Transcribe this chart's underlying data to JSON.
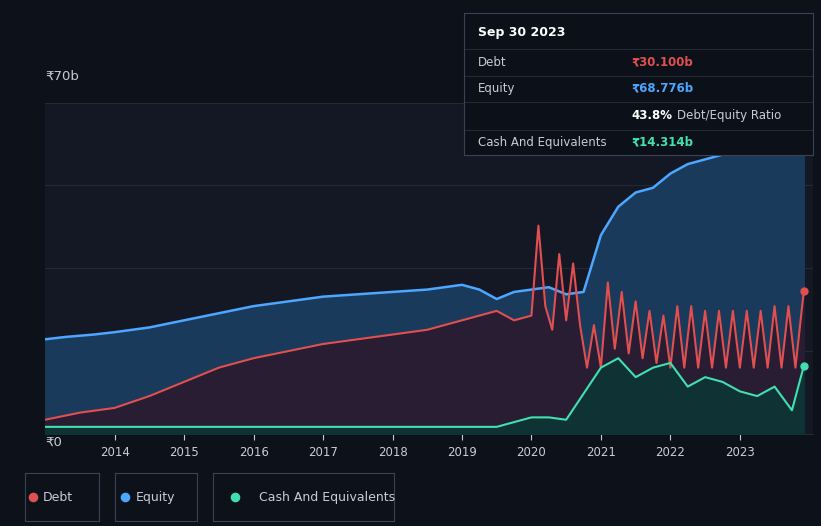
{
  "bg_color": "#0d111a",
  "chart_area_color": "#141824",
  "equity_fill_color": "#1a3a5c",
  "debt_fill_color": "#2a1a2e",
  "cash_fill_color": "#0d3535",
  "equity_line_color": "#4da6ff",
  "debt_line_color": "#e05050",
  "cash_line_color": "#40e0b0",
  "grid_color": "#252d3d",
  "text_color": "#c8ccd4",
  "ylim": [
    0,
    70
  ],
  "ylabel_text": "₹70b",
  "y0_text": "₹0",
  "xtick_labels": [
    "2014",
    "2015",
    "2016",
    "2017",
    "2018",
    "2019",
    "2020",
    "2021",
    "2022",
    "2023"
  ],
  "xtick_values": [
    2014,
    2015,
    2016,
    2017,
    2018,
    2019,
    2020,
    2021,
    2022,
    2023
  ],
  "tooltip_date": "Sep 30 2023",
  "tooltip_debt_label": "Debt",
  "tooltip_debt_value": "₹30.100b",
  "tooltip_equity_label": "Equity",
  "tooltip_equity_value": "₹68.776b",
  "tooltip_ratio_bold": "43.8%",
  "tooltip_ratio_text": " Debt/Equity Ratio",
  "tooltip_cash_label": "Cash And Equivalents",
  "tooltip_cash_value": "₹14.314b",
  "legend_debt": "Debt",
  "legend_equity": "Equity",
  "legend_cash": "Cash And Equivalents",
  "equity_x": [
    2013.0,
    2013.3,
    2013.7,
    2014.0,
    2014.5,
    2015.0,
    2015.5,
    2016.0,
    2016.5,
    2017.0,
    2017.5,
    2018.0,
    2018.5,
    2018.75,
    2019.0,
    2019.25,
    2019.5,
    2019.75,
    2020.0,
    2020.25,
    2020.5,
    2020.75,
    2021.0,
    2021.25,
    2021.5,
    2021.75,
    2022.0,
    2022.25,
    2022.5,
    2022.75,
    2023.0,
    2023.25,
    2023.5,
    2023.75,
    2023.92
  ],
  "equity_y": [
    20,
    20.5,
    21,
    21.5,
    22.5,
    24,
    25.5,
    27,
    28,
    29,
    29.5,
    30,
    30.5,
    31,
    31.5,
    30.5,
    28.5,
    30,
    30.5,
    31,
    29.5,
    30,
    42,
    48,
    51,
    52,
    55,
    57,
    58,
    59,
    61,
    62,
    63,
    64.5,
    68.776
  ],
  "debt_x": [
    2013.0,
    2013.5,
    2014.0,
    2014.5,
    2015.0,
    2015.5,
    2016.0,
    2016.5,
    2017.0,
    2017.5,
    2018.0,
    2018.5,
    2018.75,
    2019.0,
    2019.25,
    2019.5,
    2019.75,
    2020.0,
    2020.1,
    2020.2,
    2020.3,
    2020.4,
    2020.5,
    2020.6,
    2020.7,
    2020.8,
    2020.9,
    2021.0,
    2021.1,
    2021.2,
    2021.3,
    2021.4,
    2021.5,
    2021.6,
    2021.7,
    2021.8,
    2021.9,
    2022.0,
    2022.1,
    2022.2,
    2022.3,
    2022.4,
    2022.5,
    2022.6,
    2022.7,
    2022.8,
    2022.9,
    2023.0,
    2023.1,
    2023.2,
    2023.3,
    2023.4,
    2023.5,
    2023.6,
    2023.7,
    2023.8,
    2023.92
  ],
  "debt_y": [
    3,
    4.5,
    5.5,
    8,
    11,
    14,
    16,
    17.5,
    19,
    20,
    21,
    22,
    23,
    24,
    25,
    26,
    24,
    25,
    44,
    27,
    22,
    38,
    24,
    36,
    23,
    14,
    23,
    14,
    32,
    18,
    30,
    17,
    28,
    16,
    26,
    15,
    25,
    14,
    27,
    14,
    27,
    14,
    26,
    14,
    26,
    14,
    26,
    14,
    26,
    14,
    26,
    14,
    27,
    14,
    27,
    14,
    30.1
  ],
  "cash_x": [
    2013.0,
    2013.5,
    2014.0,
    2014.5,
    2015.0,
    2015.5,
    2016.0,
    2016.5,
    2017.0,
    2017.5,
    2018.0,
    2018.5,
    2019.0,
    2019.5,
    2019.75,
    2020.0,
    2020.25,
    2020.5,
    2021.0,
    2021.25,
    2021.5,
    2021.75,
    2022.0,
    2022.25,
    2022.5,
    2022.75,
    2023.0,
    2023.25,
    2023.5,
    2023.75,
    2023.92
  ],
  "cash_y": [
    1.5,
    1.5,
    1.5,
    1.5,
    1.5,
    1.5,
    1.5,
    1.5,
    1.5,
    1.5,
    1.5,
    1.5,
    1.5,
    1.5,
    2.5,
    3.5,
    3.5,
    3,
    14,
    16,
    12,
    14,
    15,
    10,
    12,
    11,
    9,
    8,
    10,
    5,
    14.314
  ]
}
